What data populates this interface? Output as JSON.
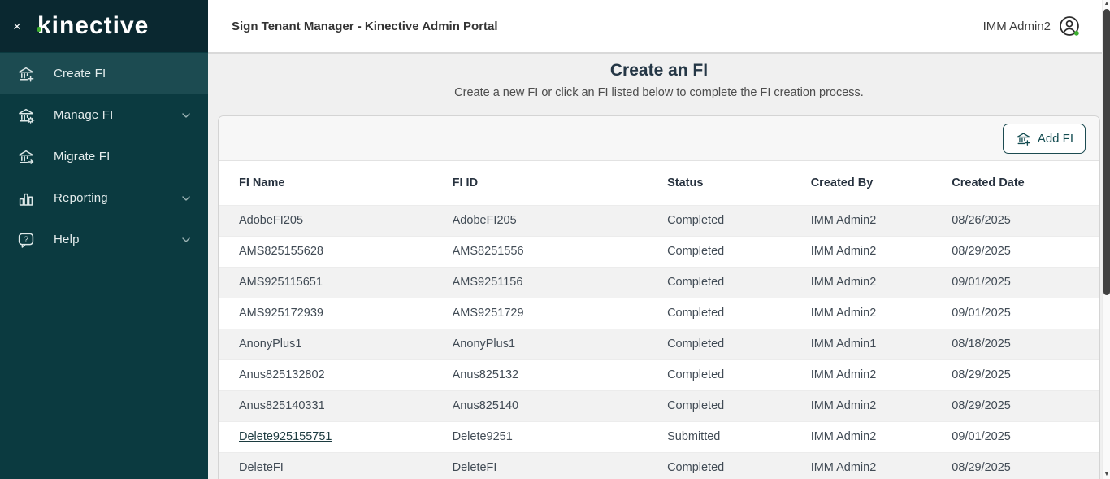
{
  "sidebar": {
    "logo_text": "kinective",
    "close_label": "×",
    "items": [
      {
        "label": "Create FI",
        "icon": "bank-plus-icon",
        "active": true,
        "chevron": false
      },
      {
        "label": "Manage FI",
        "icon": "bank-gear-icon",
        "active": false,
        "chevron": true
      },
      {
        "label": "Migrate FI",
        "icon": "bank-arrow-icon",
        "active": false,
        "chevron": false
      },
      {
        "label": "Reporting",
        "icon": "bar-chart-icon",
        "active": false,
        "chevron": true
      },
      {
        "label": "Help",
        "icon": "help-bubble-icon",
        "active": false,
        "chevron": true
      }
    ]
  },
  "topbar": {
    "title": "Sign Tenant Manager - Kinective Admin Portal",
    "user_name": "IMM Admin2",
    "user_status": "online"
  },
  "page": {
    "title": "Create an FI",
    "subtitle": "Create a new FI or click an FI listed below to complete the FI creation process."
  },
  "toolbar": {
    "add_fi_label": "Add FI"
  },
  "table": {
    "columns": [
      "FI Name",
      "FI ID",
      "Status",
      "Created By",
      "Created Date"
    ],
    "rows": [
      {
        "fi_name": "AdobeFI205",
        "fi_id": "AdobeFI205",
        "status": "Completed",
        "created_by": "IMM Admin2",
        "created_date": "08/26/2025",
        "link": false
      },
      {
        "fi_name": "AMS825155628",
        "fi_id": "AMS8251556",
        "status": "Completed",
        "created_by": "IMM Admin2",
        "created_date": "08/29/2025",
        "link": false
      },
      {
        "fi_name": "AMS925115651",
        "fi_id": "AMS9251156",
        "status": "Completed",
        "created_by": "IMM Admin2",
        "created_date": "09/01/2025",
        "link": false
      },
      {
        "fi_name": "AMS925172939",
        "fi_id": "AMS9251729",
        "status": "Completed",
        "created_by": "IMM Admin2",
        "created_date": "09/01/2025",
        "link": false
      },
      {
        "fi_name": "AnonyPlus1",
        "fi_id": "AnonyPlus1",
        "status": "Completed",
        "created_by": "IMM Admin1",
        "created_date": "08/18/2025",
        "link": false
      },
      {
        "fi_name": "Anus825132802",
        "fi_id": "Anus825132",
        "status": "Completed",
        "created_by": "IMM Admin2",
        "created_date": "08/29/2025",
        "link": false
      },
      {
        "fi_name": "Anus825140331",
        "fi_id": "Anus825140",
        "status": "Completed",
        "created_by": "IMM Admin2",
        "created_date": "08/29/2025",
        "link": false
      },
      {
        "fi_name": "Delete925155751",
        "fi_id": "Delete9251",
        "status": "Submitted",
        "created_by": "IMM Admin2",
        "created_date": "09/01/2025",
        "link": true
      },
      {
        "fi_name": "DeleteFI",
        "fi_id": "DeleteFI",
        "status": "Completed",
        "created_by": "IMM Admin2",
        "created_date": "08/29/2025",
        "link": false
      }
    ]
  },
  "colors": {
    "sidebar_bg": "#0b3a40",
    "logo_bar_bg": "#0a2830",
    "active_item_bg": "#1c4b51",
    "accent_teal": "#124b50",
    "logo_dot_green": "#3cae2f",
    "status_dot_green": "#3cae2f",
    "page_bg": "#f0f0f0",
    "stripe_row_bg": "#f2f2f2",
    "header_text": "#27323f"
  }
}
